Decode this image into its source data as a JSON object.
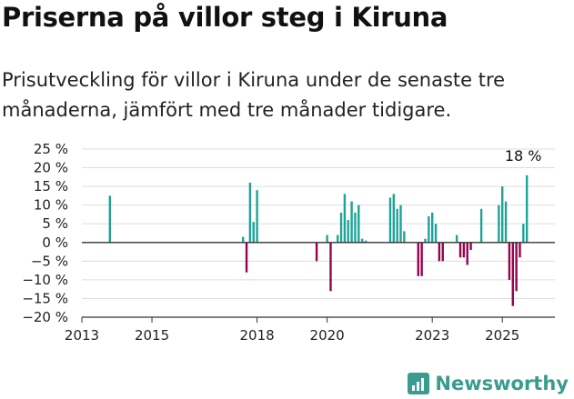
{
  "title": "Priserna på villor steg i Kiruna",
  "subtitle": "Prisutveckling för villor i Kiruna under de senaste tre månaderna, jämfört med tre månader tidigare.",
  "brand": {
    "name": "Newsworthy",
    "icon": "newsworthy-logo-icon"
  },
  "colors": {
    "positive": "#1fa398",
    "negative": "#95034f",
    "brand": "#3a9c8f"
  },
  "chart_data": {
    "type": "bar",
    "x_unit": "year",
    "xlim": [
      2013,
      2026.5
    ],
    "ylim": [
      -20,
      25
    ],
    "y_ticks": [
      25,
      20,
      15,
      10,
      5,
      0,
      -5,
      -10,
      -15,
      -20
    ],
    "y_tick_labels": [
      "25 %",
      "20 %",
      "15 %",
      "10 %",
      "5 %",
      "0 %",
      "−5 %",
      "−10 %",
      "−15 %",
      "−20 %"
    ],
    "x_ticks": [
      2013,
      2015,
      2018,
      2020,
      2023,
      2025
    ],
    "x_tick_labels": [
      "2013",
      "2015",
      "2018",
      "2020",
      "2023",
      "2025"
    ],
    "grid": true,
    "annotation": {
      "label": "18 %",
      "x": 2025.7,
      "y": 18
    },
    "x": [
      2013.8,
      2017.6,
      2017.7,
      2017.8,
      2017.9,
      2018.0,
      2019.7,
      2020.0,
      2020.1,
      2020.3,
      2020.4,
      2020.5,
      2020.6,
      2020.7,
      2020.8,
      2020.9,
      2021.0,
      2021.1,
      2021.8,
      2021.9,
      2022.0,
      2022.1,
      2022.2,
      2022.6,
      2022.7,
      2022.8,
      2022.9,
      2023.0,
      2023.1,
      2023.2,
      2023.3,
      2023.7,
      2023.8,
      2023.9,
      2024.0,
      2024.1,
      2024.4,
      2024.9,
      2025.0,
      2025.1,
      2025.2,
      2025.3,
      2025.4,
      2025.5,
      2025.6,
      2025.7
    ],
    "values": [
      12.5,
      1.5,
      -8,
      16,
      5.5,
      14,
      -5,
      2,
      -13,
      2,
      8,
      13,
      6,
      11,
      8,
      10,
      1,
      0.5,
      12,
      13,
      9,
      10,
      3,
      -9,
      -9,
      1,
      7,
      8,
      5,
      -5,
      -5,
      2,
      -4,
      -4,
      -6,
      -2,
      9,
      10,
      15,
      11,
      -10,
      -17,
      -13,
      -4,
      5,
      18
    ]
  }
}
